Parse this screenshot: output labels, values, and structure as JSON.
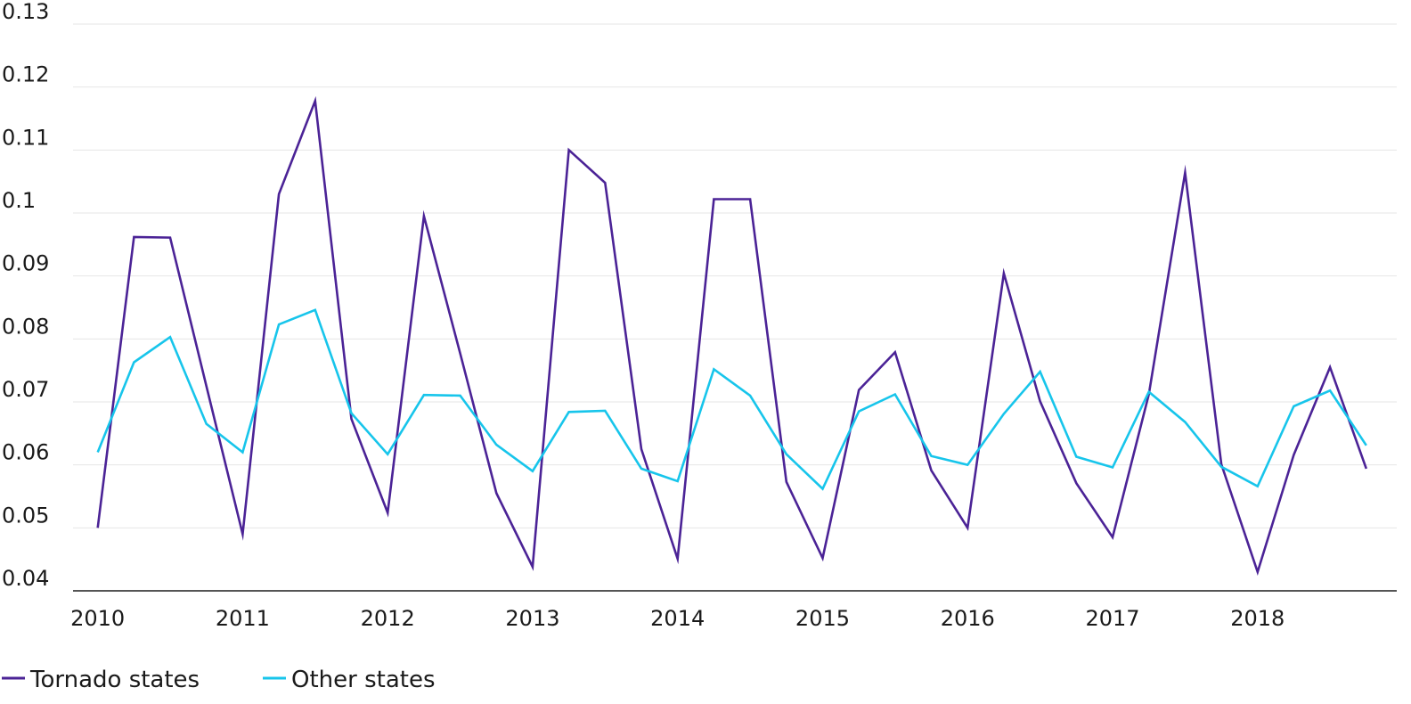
{
  "chart_data": {
    "type": "line",
    "title": "",
    "xlabel": "",
    "ylabel": "",
    "ylim": [
      0.04,
      0.13
    ],
    "y_ticks": [
      "0.04",
      "0.05",
      "0.06",
      "0.07",
      "0.08",
      "0.09",
      "0.1",
      "0.11",
      "0.12",
      "0.13"
    ],
    "x_tick_labels": [
      "2010",
      "2011",
      "2012",
      "2013",
      "2014",
      "2015",
      "2016",
      "2017",
      "2018"
    ],
    "x_tick_values": [
      2010,
      2011,
      2012,
      2013,
      2014,
      2015,
      2016,
      2017,
      2018
    ],
    "xlim": [
      2009.83,
      2018.96
    ],
    "grid": "horizontal",
    "legend_position": "bottom-left",
    "x": [
      2010,
      2010.25,
      2010.5,
      2010.75,
      2011,
      2011.25,
      2011.5,
      2011.75,
      2012,
      2012.25,
      2012.5,
      2012.75,
      2013,
      2013.25,
      2013.5,
      2013.75,
      2014,
      2014.25,
      2014.5,
      2014.75,
      2015,
      2015.25,
      2015.5,
      2015.75,
      2016,
      2016.25,
      2016.5,
      2016.75,
      2017,
      2017.25,
      2017.5,
      2017.75,
      2018,
      2018.25,
      2018.5,
      2018.75
    ],
    "series": [
      {
        "name": "Tornado states",
        "color": "#4b2396",
        "values": [
          0.05,
          0.0962,
          0.0961,
          0.0725,
          0.049,
          0.103,
          0.1178,
          0.0673,
          0.0524,
          0.0995,
          0.0777,
          0.0555,
          0.0438,
          0.11,
          0.1048,
          0.0625,
          0.0451,
          0.1022,
          0.1022,
          0.0573,
          0.0452,
          0.0719,
          0.0779,
          0.0591,
          0.05,
          0.0904,
          0.0701,
          0.0571,
          0.0485,
          0.0712,
          0.1064,
          0.0601,
          0.043,
          0.0616,
          0.0755,
          0.0594
        ]
      },
      {
        "name": "Other states",
        "color": "#17c5eb",
        "values": [
          0.062,
          0.0763,
          0.0803,
          0.0665,
          0.062,
          0.0823,
          0.0846,
          0.0682,
          0.0617,
          0.0711,
          0.071,
          0.0632,
          0.059,
          0.0684,
          0.0686,
          0.0594,
          0.0574,
          0.0752,
          0.071,
          0.0617,
          0.0562,
          0.0685,
          0.0712,
          0.0614,
          0.06,
          0.0681,
          0.0748,
          0.0613,
          0.0596,
          0.0716,
          0.0668,
          0.0597,
          0.0566,
          0.0693,
          0.0718,
          0.0631
        ]
      }
    ]
  }
}
